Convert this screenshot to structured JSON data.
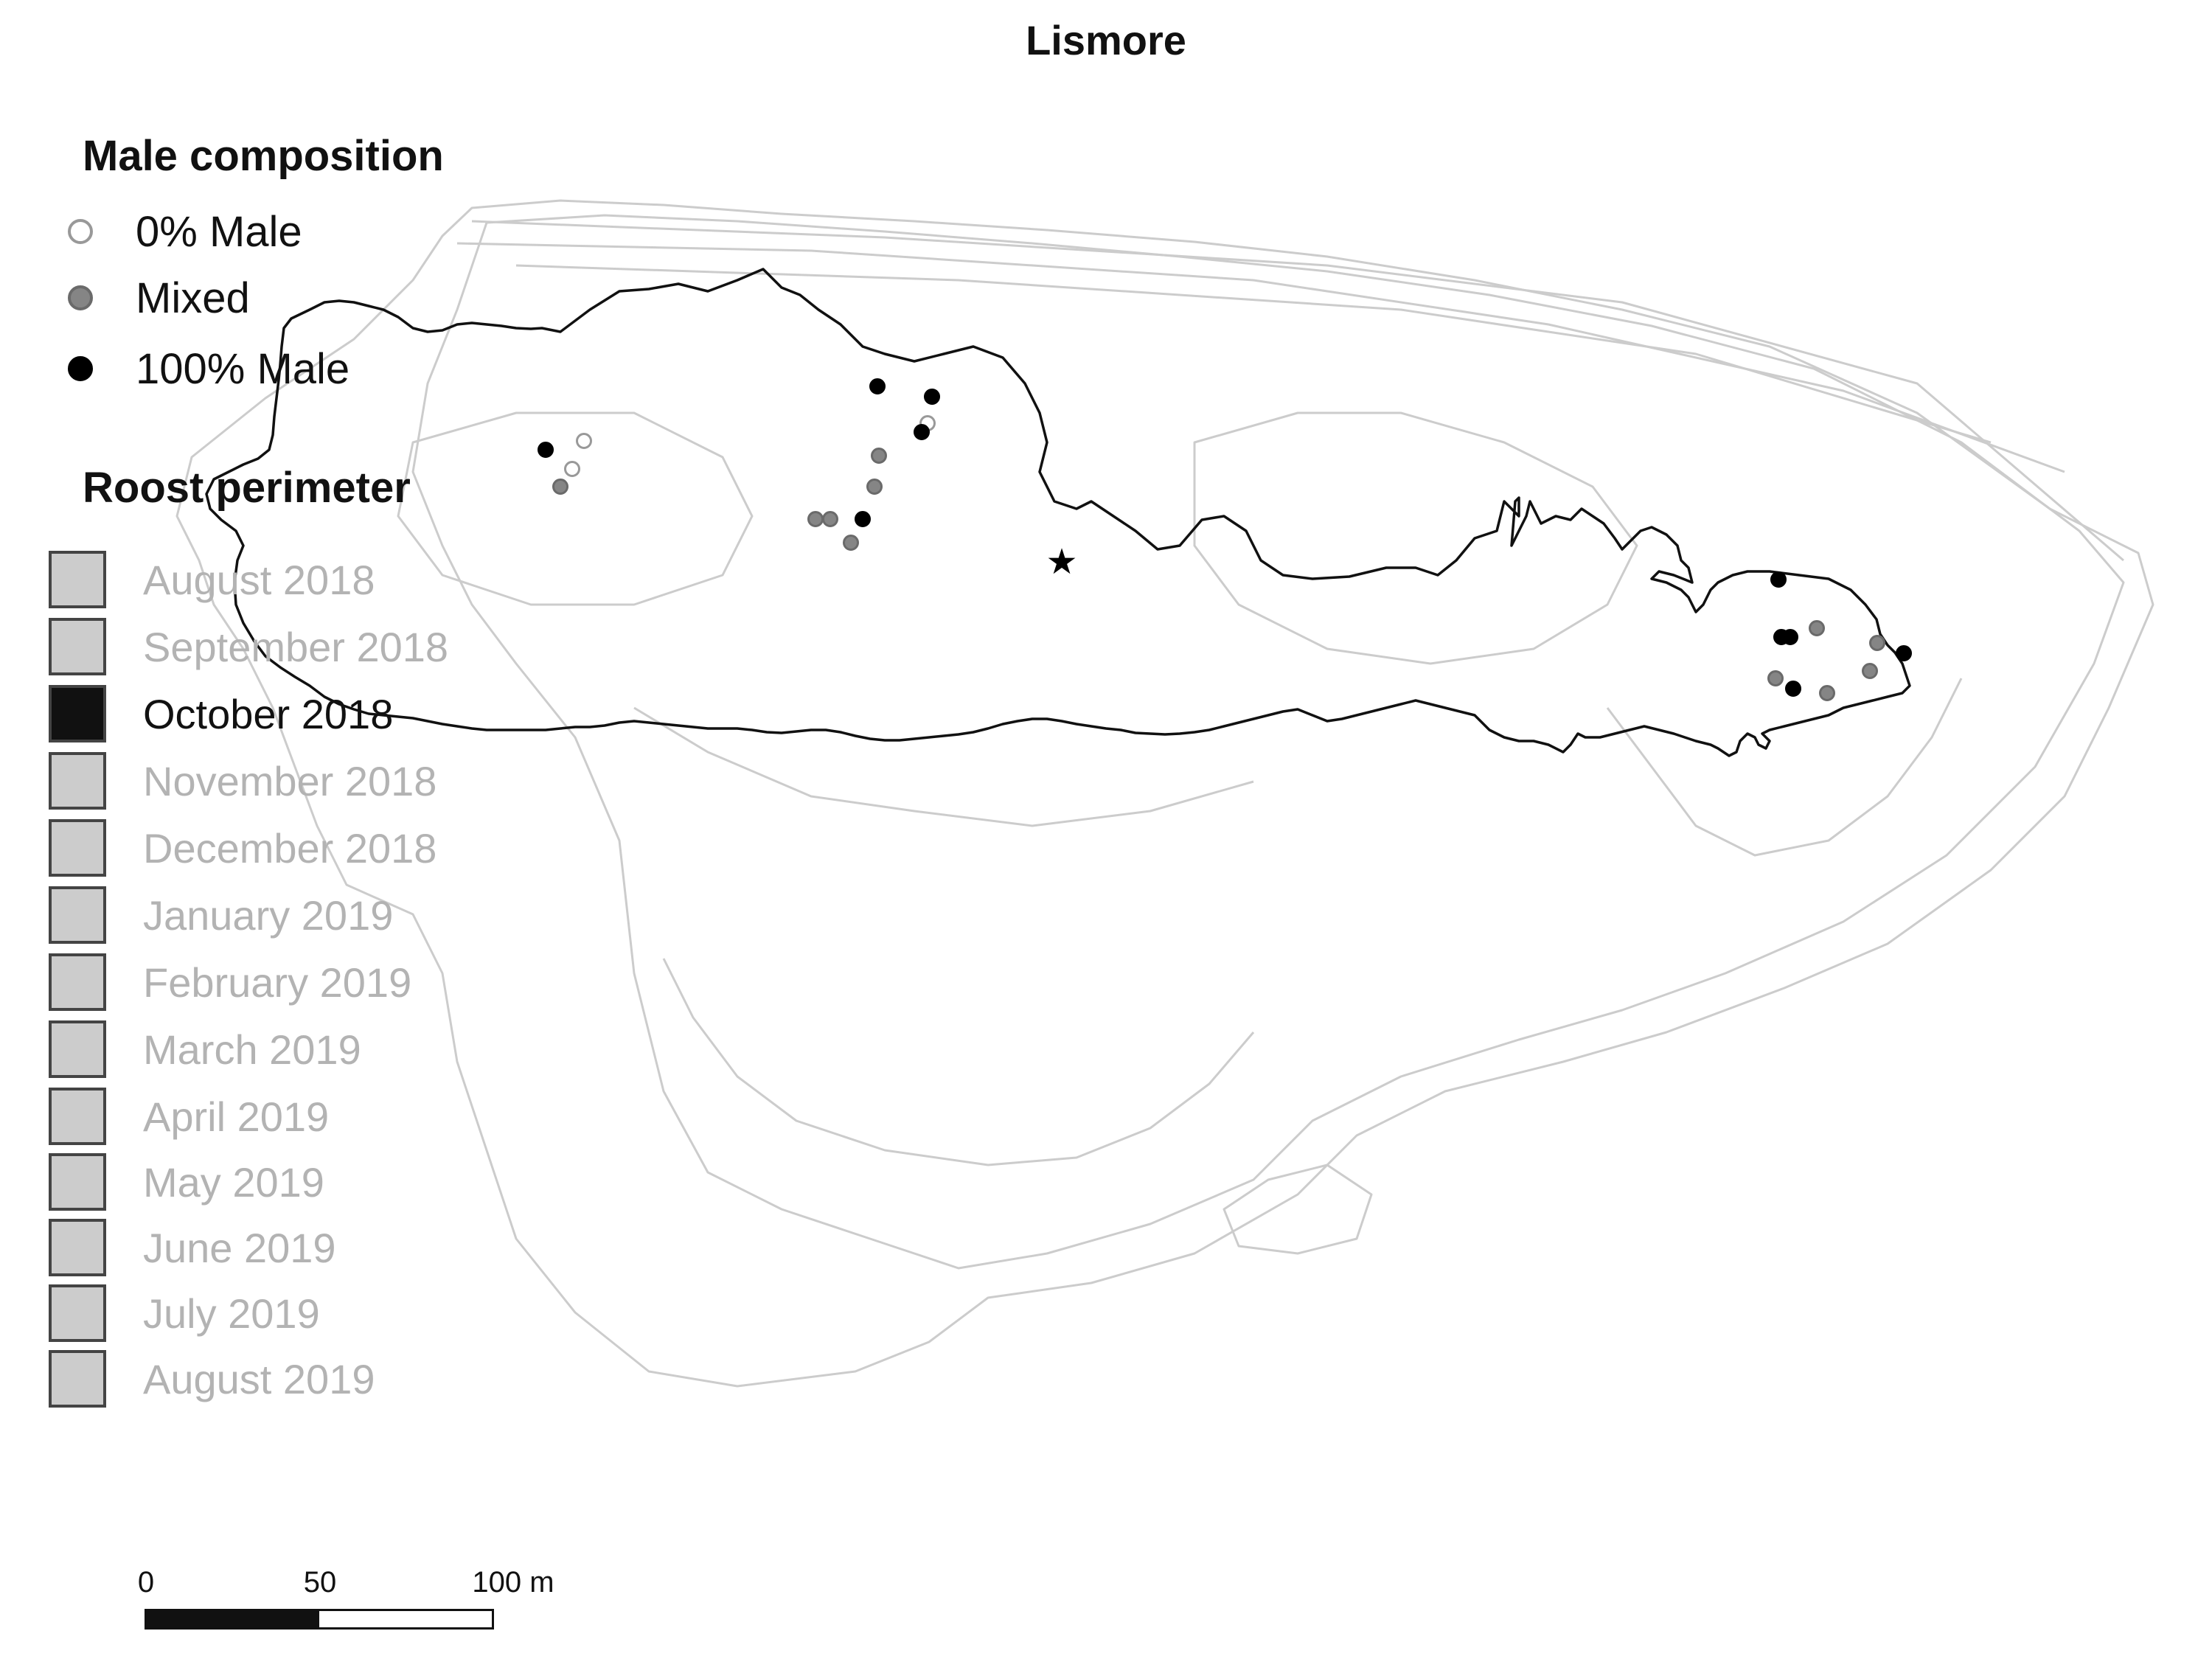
{
  "title": "Lismore",
  "male_composition": {
    "heading": "Male composition",
    "items": [
      {
        "label": "0% Male",
        "fill": "#ffffff",
        "stroke": "#999999"
      },
      {
        "label": "Mixed",
        "fill": "#858585",
        "stroke": "#6a6a6a"
      },
      {
        "label": "100% Male",
        "fill": "#000000",
        "stroke": "#000000"
      }
    ]
  },
  "roost_perimeter": {
    "heading": "Roost perimeter",
    "items": [
      {
        "label": "August 2018",
        "active": false
      },
      {
        "label": "September 2018",
        "active": false
      },
      {
        "label": "October 2018",
        "active": true
      },
      {
        "label": "November 2018",
        "active": false
      },
      {
        "label": "December 2018",
        "active": false
      },
      {
        "label": "January 2019",
        "active": false
      },
      {
        "label": "February 2019",
        "active": false
      },
      {
        "label": "March 2019",
        "active": false
      },
      {
        "label": "April 2019",
        "active": false
      },
      {
        "label": "May 2019",
        "active": false
      },
      {
        "label": "June 2019",
        "active": false
      },
      {
        "label": "July 2019",
        "active": false
      },
      {
        "label": "August 2019",
        "active": false
      }
    ]
  },
  "scale_bar": {
    "ticks": [
      "0",
      "50",
      "100 m"
    ]
  },
  "colors": {
    "active": "#111111",
    "inactive_fill": "#cccccc",
    "inactive_text": "#b3b3b3",
    "other_perimeters": "#cccccc"
  },
  "markers": {
    "centroid": "star-marker"
  }
}
